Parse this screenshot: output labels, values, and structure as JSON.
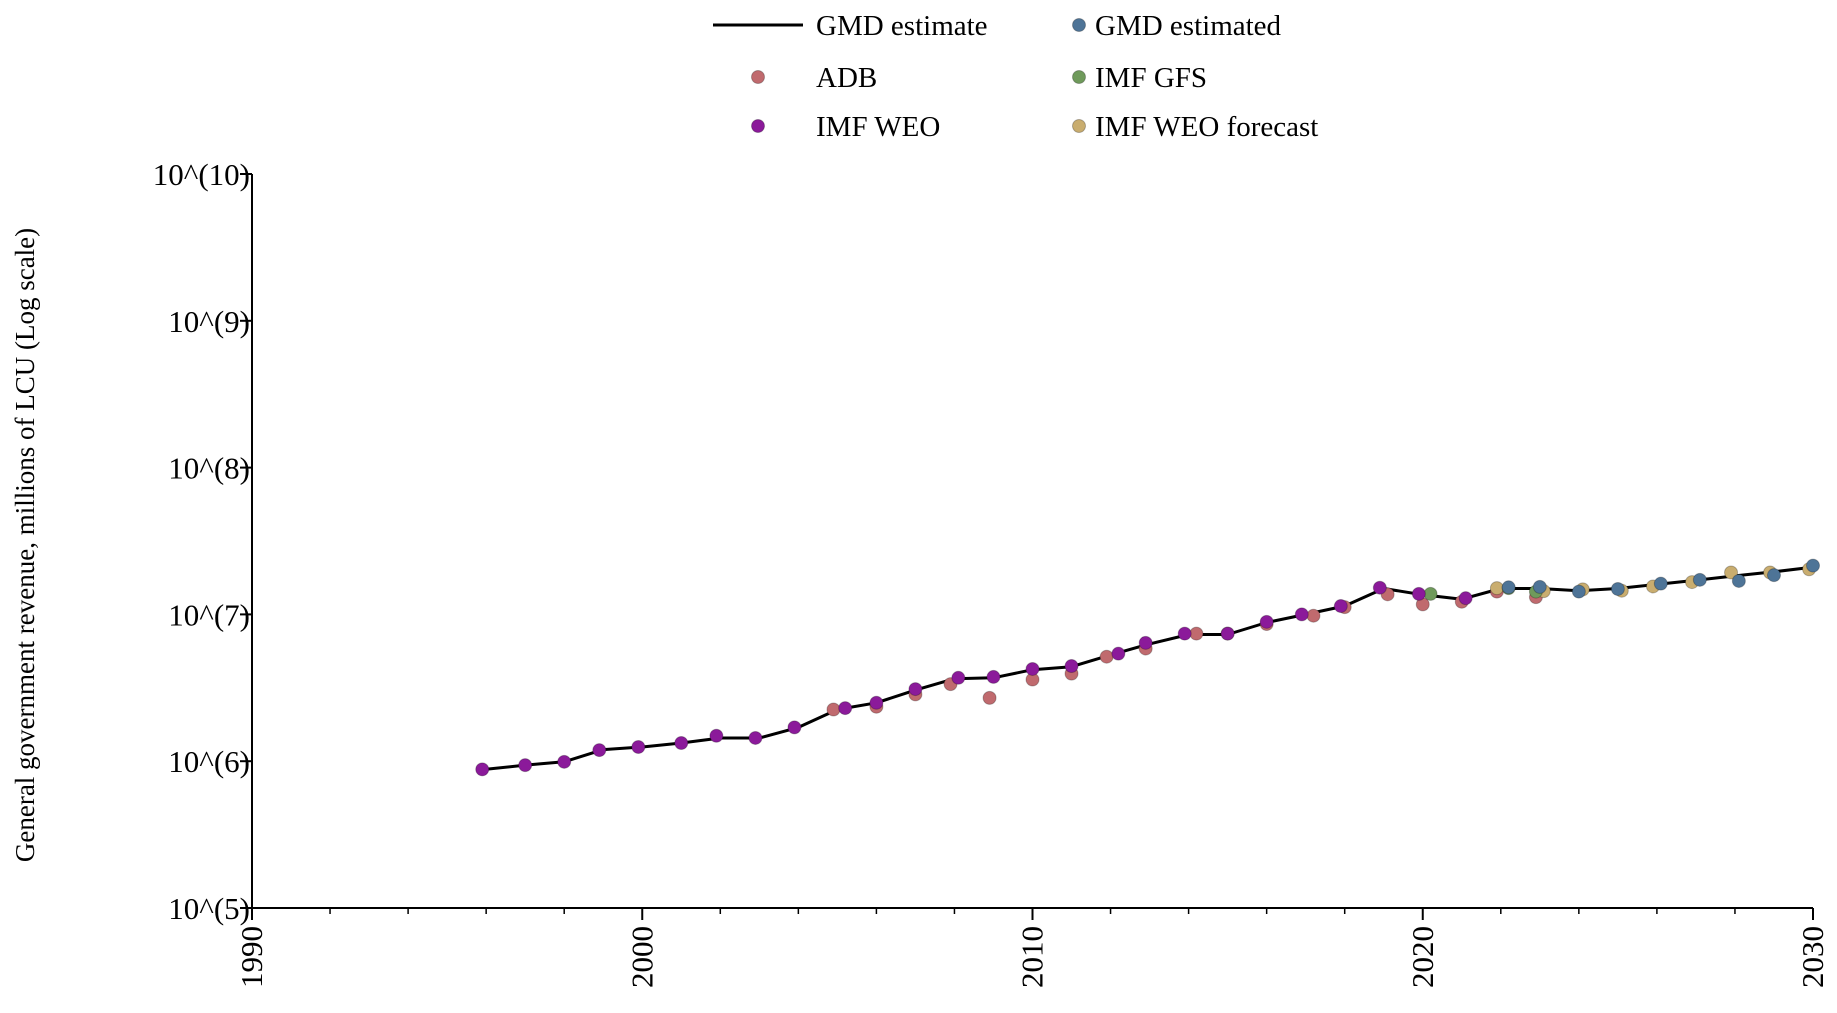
{
  "chart_data": {
    "type": "scatter",
    "title": "",
    "xlabel": "",
    "ylabel": "General government revenue, millions of LCU (Log scale)",
    "yscale": "log",
    "xlim": [
      1990,
      2030
    ],
    "ylim": [
      100000,
      10000000000
    ],
    "x_ticks": [
      1990,
      2000,
      2010,
      2020,
      2030
    ],
    "x_tick_labels": [
      "1990",
      "2000",
      "2010",
      "2020",
      "2030"
    ],
    "y_ticks": [
      100000,
      1000000,
      10000000,
      100000000,
      1000000000,
      10000000000
    ],
    "y_tick_labels": [
      "10^(5)",
      "10^(6)",
      "10^(7)",
      "10^(8)",
      "10^(9)",
      "10^(10)"
    ],
    "grid": false,
    "legend_position": "top",
    "colors": {
      "gmd_estimate": "#000000",
      "gmd_estimated": "#4e7497",
      "adb": "#c06a6e",
      "imf_gfs": "#6f9a5b",
      "imf_weo": "#8b1a9a",
      "imf_weo_forecast": "#c9ad6f"
    },
    "series": [
      {
        "name": "GMD estimate",
        "key": "gmd_estimate",
        "style": "line",
        "x": [
          1996,
          1997,
          1998,
          1999,
          2000,
          2001,
          2002,
          2003,
          2004,
          2005,
          2006,
          2007,
          2008,
          2009,
          2010,
          2011,
          2012,
          2013,
          2014,
          2015,
          2016,
          2017,
          2018,
          2019,
          2020,
          2021,
          2022,
          2023,
          2024,
          2025,
          2026,
          2027,
          2028,
          2029,
          2030
        ],
        "y": [
          880000,
          940000,
          990000,
          1200000,
          1250000,
          1330000,
          1440000,
          1440000,
          1700000,
          2250000,
          2500000,
          3050000,
          3650000,
          3700000,
          4200000,
          4400000,
          5300000,
          6300000,
          7300000,
          7300000,
          8800000,
          10000000,
          11400000,
          15000000,
          13600000,
          12700000,
          15000000,
          15000000,
          14500000,
          15000000,
          16000000,
          17100000,
          18300000,
          19500000,
          21000000
        ]
      },
      {
        "name": "GMD estimated",
        "key": "gmd_estimated",
        "style": "marker",
        "x": [
          2022.2,
          2023.0,
          2024.0,
          2025.0,
          2026.1,
          2027.1,
          2028.1,
          2029.0,
          2030.0
        ],
        "y": [
          15300000,
          15400000,
          14300000,
          14900000,
          16200000,
          17200000,
          16900000,
          18500000,
          21500000
        ]
      },
      {
        "name": "ADB",
        "key": "adb",
        "style": "marker",
        "x": [
          2004.9,
          2006.0,
          2007.0,
          2007.9,
          2008.9,
          2010.0,
          2011.0,
          2011.9,
          2012.9,
          2014.2,
          2015.0,
          2016.0,
          2017.2,
          2018.0,
          2019.1,
          2020.0,
          2021.0,
          2021.9,
          2022.9
        ],
        "y": [
          2250000,
          2350000,
          2850000,
          3350000,
          2700000,
          3600000,
          3950000,
          5150000,
          5850000,
          7400000,
          7400000,
          8600000,
          9800000,
          11200000,
          13700000,
          11700000,
          12200000,
          14300000,
          13100000
        ]
      },
      {
        "name": "IMF GFS",
        "key": "imf_gfs",
        "style": "marker",
        "x": [
          2020.2,
          2022.2,
          2022.9
        ],
        "y": [
          13800000,
          15100000,
          14300000
        ]
      },
      {
        "name": "IMF WEO",
        "key": "imf_weo",
        "style": "marker",
        "x": [
          1995.9,
          1997.0,
          1998.0,
          1998.9,
          1999.9,
          2001.0,
          2001.9,
          2002.9,
          2003.9,
          2005.2,
          2006.0,
          2007.0,
          2008.1,
          2009.0,
          2010.0,
          2011.0,
          2012.2,
          2012.9,
          2013.9,
          2015.0,
          2016.0,
          2016.9,
          2017.9,
          2018.9,
          2019.9,
          2021.1
        ],
        "y": [
          880000,
          940000,
          990000,
          1190000,
          1250000,
          1330000,
          1490000,
          1440000,
          1700000,
          2300000,
          2500000,
          3100000,
          3700000,
          3750000,
          4250000,
          4450000,
          5400000,
          6400000,
          7400000,
          7400000,
          8900000,
          10000000,
          11400000,
          15200000,
          13800000,
          12900000
        ]
      },
      {
        "name": "IMF WEO forecast",
        "key": "imf_weo_forecast",
        "style": "marker",
        "x": [
          2021.9,
          2023.1,
          2024.1,
          2025.1,
          2025.9,
          2026.9,
          2027.9,
          2028.9,
          2029.9
        ],
        "y": [
          15100000,
          14400000,
          14800000,
          14500000,
          15500000,
          16600000,
          19300000,
          19300000,
          20300000
        ]
      }
    ]
  }
}
